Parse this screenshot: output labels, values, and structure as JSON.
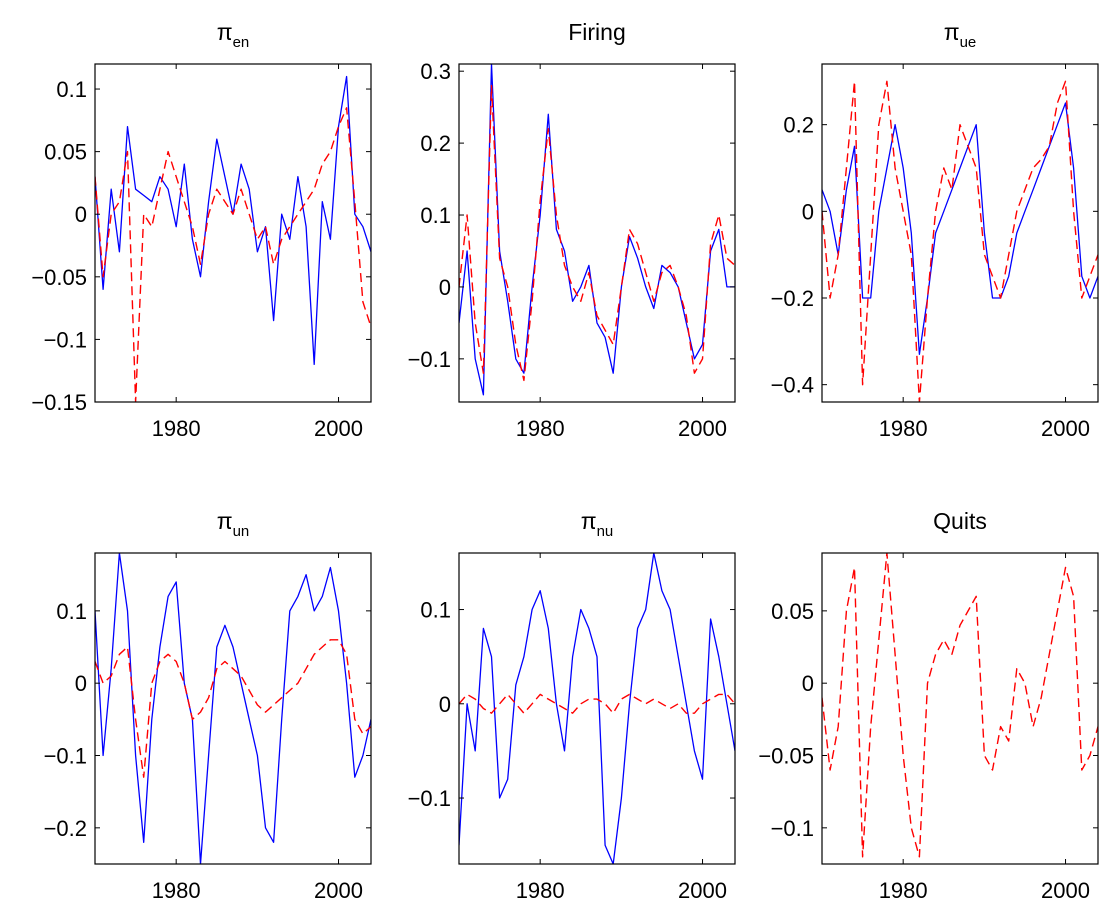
{
  "colors": {
    "actual": "#0000ff",
    "model": "#ff0000",
    "axis": "#000000",
    "background": "#ffffff"
  },
  "chart_data": [
    {
      "type": "line",
      "title": "π",
      "title_sub": "en",
      "xlim": [
        1970,
        2004
      ],
      "ylim": [
        -0.15,
        0.12
      ],
      "xticks": [
        1980,
        2000
      ],
      "xtick_labels": [
        "1980",
        "2000"
      ],
      "yticks": [
        -0.15,
        -0.1,
        -0.05,
        0,
        0.05,
        0.1
      ],
      "ytick_labels": [
        "−0.15",
        "−0.1",
        "−0.05",
        "0",
        "0.05",
        "0.1"
      ],
      "x_start": 1970,
      "x_step": 1,
      "series": [
        {
          "style": "solid",
          "color": "#0000ff",
          "values": [
            0.03,
            -0.06,
            0.02,
            -0.03,
            0.07,
            0.02,
            0.015,
            0.01,
            0.03,
            0.02,
            -0.01,
            0.04,
            -0.02,
            -0.05,
            0.01,
            0.06,
            0.03,
            0.0,
            0.04,
            0.02,
            -0.03,
            -0.01,
            -0.085,
            0.0,
            -0.02,
            0.03,
            -0.01,
            -0.12,
            0.01,
            -0.02,
            0.07,
            0.11,
            0.0,
            -0.01,
            -0.03
          ]
        },
        {
          "style": "dashed",
          "color": "#ff0000",
          "values": [
            0.03,
            -0.05,
            0.0,
            0.01,
            0.05,
            -0.15,
            0.0,
            -0.01,
            0.02,
            0.05,
            0.03,
            0.01,
            -0.01,
            -0.04,
            0.0,
            0.02,
            0.01,
            0.0,
            0.02,
            0.0,
            -0.02,
            -0.01,
            -0.04,
            -0.02,
            -0.01,
            0.0,
            0.01,
            0.02,
            0.04,
            0.05,
            0.07,
            0.085,
            0.01,
            -0.07,
            -0.09
          ]
        }
      ]
    },
    {
      "type": "line",
      "title": "Firing",
      "title_sub": "",
      "xlim": [
        1970,
        2004
      ],
      "ylim": [
        -0.16,
        0.31
      ],
      "xticks": [
        1980,
        2000
      ],
      "xtick_labels": [
        "1980",
        "2000"
      ],
      "yticks": [
        -0.1,
        0,
        0.1,
        0.2,
        0.3
      ],
      "ytick_labels": [
        "−0.1",
        "0",
        "0.1",
        "0.2",
        "0.3"
      ],
      "x_start": 1970,
      "x_step": 1,
      "series": [
        {
          "style": "solid",
          "color": "#0000ff",
          "values": [
            -0.05,
            0.05,
            -0.1,
            -0.15,
            0.31,
            0.05,
            -0.02,
            -0.1,
            -0.12,
            0.0,
            0.1,
            0.24,
            0.08,
            0.05,
            -0.02,
            0.0,
            0.03,
            -0.05,
            -0.07,
            -0.12,
            0.0,
            0.07,
            0.04,
            0.0,
            -0.03,
            0.03,
            0.02,
            0.0,
            -0.05,
            -0.1,
            -0.08,
            0.05,
            0.08,
            0.0,
            0.0
          ]
        },
        {
          "style": "dashed",
          "color": "#ff0000",
          "values": [
            0.0,
            0.1,
            -0.05,
            -0.12,
            0.28,
            0.04,
            0.0,
            -0.08,
            -0.13,
            -0.02,
            0.12,
            0.22,
            0.1,
            0.03,
            0.0,
            -0.02,
            0.02,
            -0.04,
            -0.06,
            -0.08,
            0.0,
            0.08,
            0.06,
            0.02,
            -0.02,
            0.02,
            0.03,
            0.0,
            -0.04,
            -0.12,
            -0.1,
            0.06,
            0.1,
            0.04,
            0.03
          ]
        }
      ]
    },
    {
      "type": "line",
      "title": "π",
      "title_sub": "ue",
      "xlim": [
        1970,
        2004
      ],
      "ylim": [
        -0.44,
        0.34
      ],
      "xticks": [
        1980,
        2000
      ],
      "xtick_labels": [
        "1980",
        "2000"
      ],
      "yticks": [
        -0.4,
        -0.2,
        0,
        0.2
      ],
      "ytick_labels": [
        "−0.4",
        "−0.2",
        "0",
        "0.2"
      ],
      "x_start": 1970,
      "x_step": 1,
      "series": [
        {
          "style": "solid",
          "color": "#0000ff",
          "values": [
            0.05,
            0.0,
            -0.1,
            0.05,
            0.15,
            -0.2,
            -0.2,
            0.0,
            0.1,
            0.2,
            0.1,
            -0.05,
            -0.33,
            -0.2,
            -0.05,
            0.0,
            0.05,
            0.1,
            0.15,
            0.2,
            -0.05,
            -0.2,
            -0.2,
            -0.15,
            -0.05,
            0.0,
            0.05,
            0.1,
            0.15,
            0.2,
            0.25,
            0.1,
            -0.15,
            -0.2,
            -0.15
          ]
        },
        {
          "style": "dashed",
          "color": "#ff0000",
          "values": [
            0.0,
            -0.2,
            -0.1,
            0.1,
            0.3,
            -0.4,
            -0.1,
            0.2,
            0.3,
            0.1,
            0.0,
            -0.1,
            -0.44,
            -0.2,
            0.0,
            0.1,
            0.05,
            0.2,
            0.15,
            0.1,
            -0.1,
            -0.15,
            -0.2,
            -0.1,
            0.0,
            0.05,
            0.1,
            0.12,
            0.15,
            0.25,
            0.3,
            0.0,
            -0.2,
            -0.15,
            -0.1
          ]
        }
      ]
    },
    {
      "type": "line",
      "title": "π",
      "title_sub": "un",
      "xlim": [
        1970,
        2004
      ],
      "ylim": [
        -0.25,
        0.18
      ],
      "xticks": [
        1980,
        2000
      ],
      "xtick_labels": [
        "1980",
        "2000"
      ],
      "yticks": [
        -0.2,
        -0.1,
        0,
        0.1
      ],
      "ytick_labels": [
        "−0.2",
        "−0.1",
        "0",
        "0.1"
      ],
      "x_start": 1970,
      "x_step": 1,
      "series": [
        {
          "style": "solid",
          "color": "#0000ff",
          "values": [
            0.1,
            -0.1,
            0.02,
            0.18,
            0.1,
            -0.1,
            -0.22,
            -0.05,
            0.05,
            0.12,
            0.14,
            0.0,
            -0.05,
            -0.25,
            -0.1,
            0.05,
            0.08,
            0.05,
            0.0,
            -0.05,
            -0.1,
            -0.2,
            -0.22,
            -0.05,
            0.1,
            0.12,
            0.15,
            0.1,
            0.12,
            0.16,
            0.1,
            0.0,
            -0.13,
            -0.1,
            -0.05
          ]
        },
        {
          "style": "dashed",
          "color": "#ff0000",
          "values": [
            0.03,
            0.0,
            0.01,
            0.04,
            0.05,
            -0.05,
            -0.13,
            0.0,
            0.03,
            0.04,
            0.03,
            0.0,
            -0.05,
            -0.04,
            -0.02,
            0.02,
            0.03,
            0.02,
            0.01,
            -0.01,
            -0.03,
            -0.04,
            -0.03,
            -0.02,
            -0.01,
            0.0,
            0.02,
            0.04,
            0.05,
            0.06,
            0.06,
            0.04,
            -0.05,
            -0.07,
            -0.06
          ]
        }
      ]
    },
    {
      "type": "line",
      "title": "π",
      "title_sub": "nu",
      "xlim": [
        1970,
        2004
      ],
      "ylim": [
        -0.17,
        0.16
      ],
      "xticks": [
        1980,
        2000
      ],
      "xtick_labels": [
        "1980",
        "2000"
      ],
      "yticks": [
        -0.1,
        0,
        0.1
      ],
      "ytick_labels": [
        "−0.1",
        "0",
        "0.1"
      ],
      "x_start": 1970,
      "x_step": 1,
      "series": [
        {
          "style": "solid",
          "color": "#0000ff",
          "values": [
            -0.15,
            0.0,
            -0.05,
            0.08,
            0.05,
            -0.1,
            -0.08,
            0.02,
            0.05,
            0.1,
            0.12,
            0.08,
            0.0,
            -0.05,
            0.05,
            0.1,
            0.08,
            0.05,
            -0.15,
            -0.17,
            -0.1,
            0.0,
            0.08,
            0.1,
            0.16,
            0.12,
            0.1,
            0.05,
            0.0,
            -0.05,
            -0.08,
            0.09,
            0.05,
            0.0,
            -0.05
          ]
        },
        {
          "style": "dashed",
          "color": "#ff0000",
          "values": [
            0.0,
            0.01,
            0.005,
            -0.005,
            -0.01,
            0.0,
            0.01,
            0.0,
            -0.01,
            0.0,
            0.01,
            0.005,
            0.0,
            -0.005,
            -0.01,
            0.0,
            0.005,
            0.005,
            0.0,
            -0.01,
            0.005,
            0.01,
            0.005,
            0.0,
            0.005,
            0.0,
            -0.005,
            0.0,
            -0.01,
            -0.01,
            0.0,
            0.005,
            0.01,
            0.01,
            0.0
          ]
        }
      ]
    },
    {
      "type": "line",
      "title": "Quits",
      "title_sub": "",
      "xlim": [
        1970,
        2004
      ],
      "ylim": [
        -0.125,
        0.09
      ],
      "xticks": [
        1980,
        2000
      ],
      "xtick_labels": [
        "1980",
        "2000"
      ],
      "yticks": [
        -0.1,
        -0.05,
        0,
        0.05
      ],
      "ytick_labels": [
        "−0.1",
        "−0.05",
        "0",
        "0.05"
      ],
      "x_start": 1970,
      "x_step": 1,
      "series": [
        {
          "style": "dashed",
          "color": "#ff0000",
          "values": [
            -0.01,
            -0.06,
            -0.03,
            0.05,
            0.08,
            -0.12,
            -0.03,
            0.03,
            0.09,
            0.02,
            -0.05,
            -0.1,
            -0.12,
            0.0,
            0.02,
            0.03,
            0.02,
            0.04,
            0.05,
            0.06,
            -0.05,
            -0.06,
            -0.03,
            -0.04,
            0.01,
            0.0,
            -0.03,
            -0.01,
            0.02,
            0.05,
            0.08,
            0.06,
            -0.06,
            -0.05,
            -0.03
          ]
        }
      ]
    }
  ]
}
